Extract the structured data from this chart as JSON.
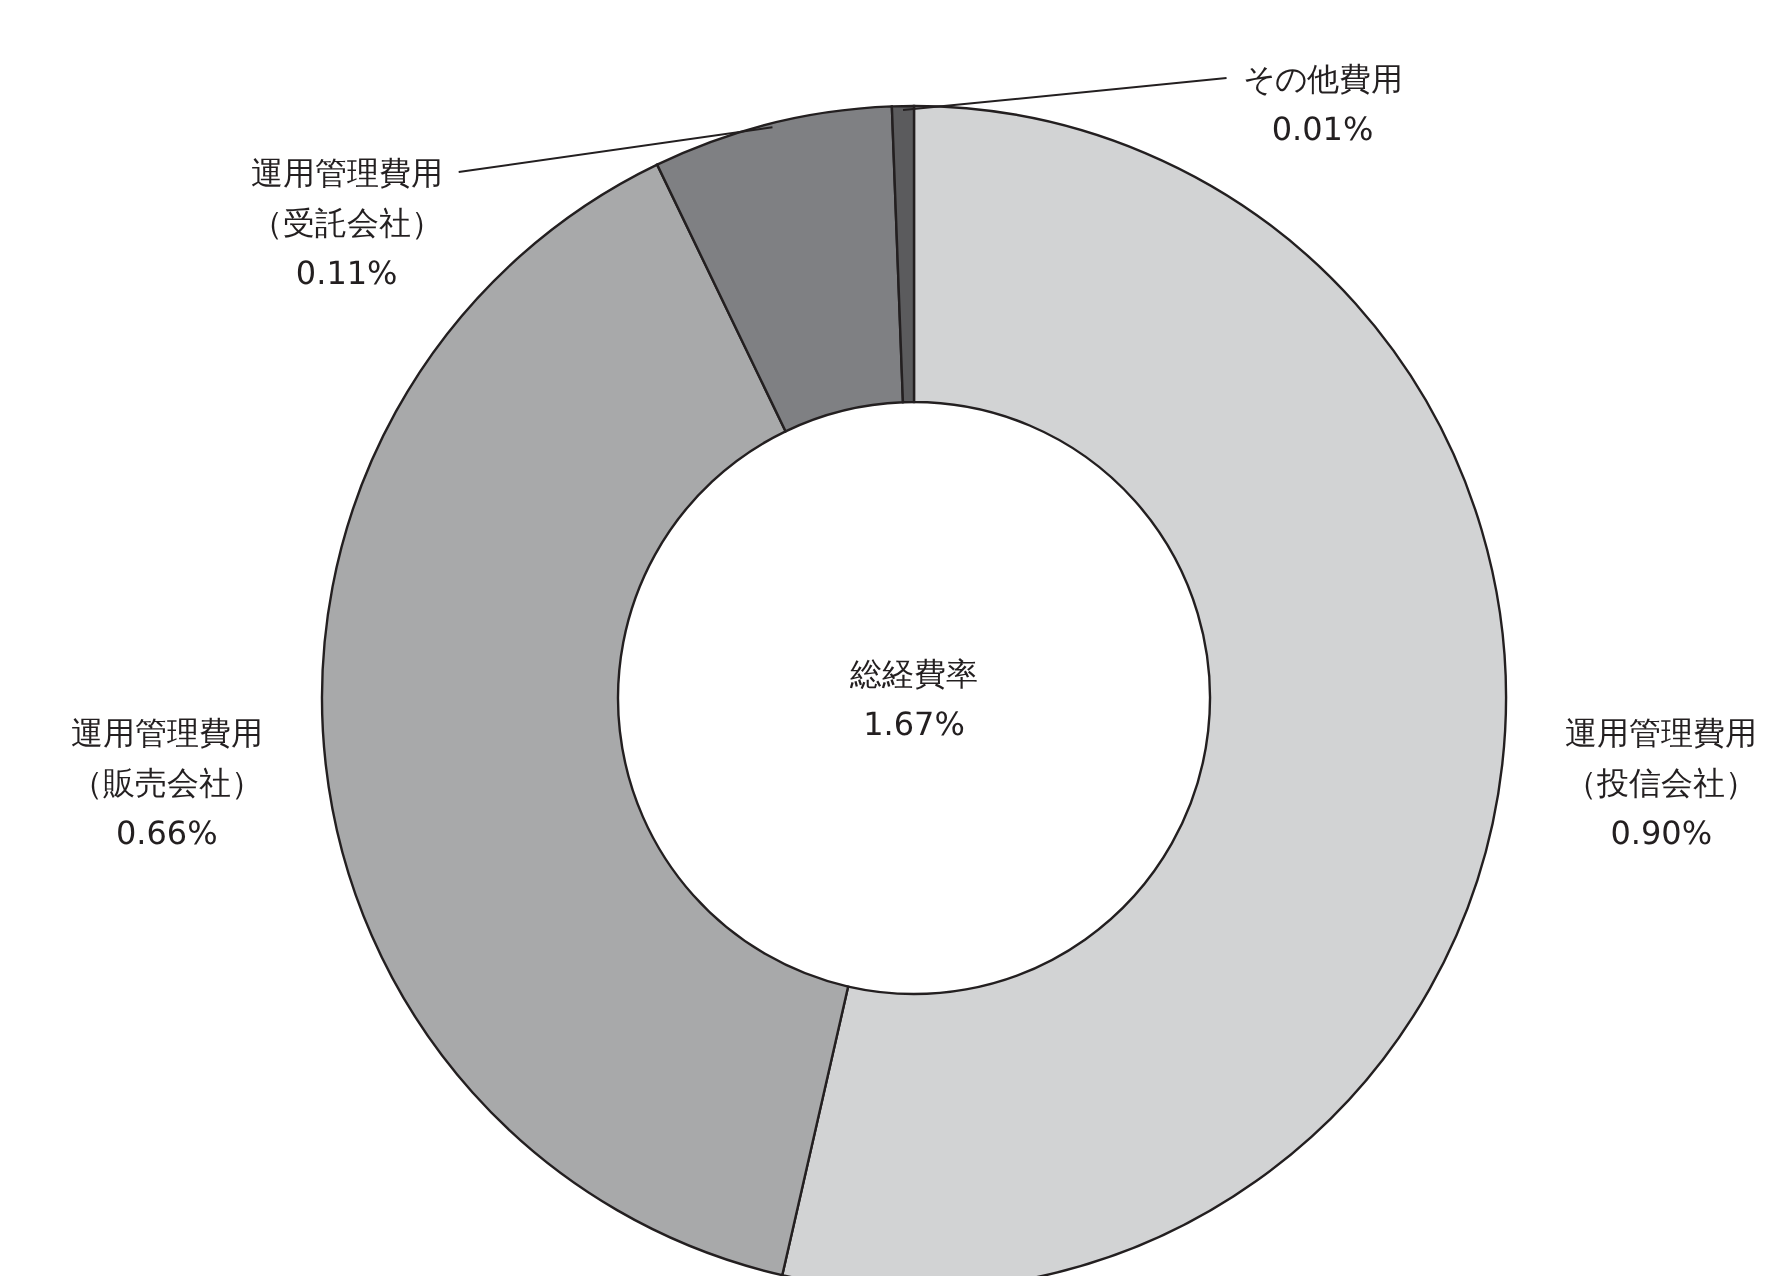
{
  "chart_data": {
    "type": "donut",
    "categories": [
      "運用管理費用（投信会社）",
      "運用管理費用（販売会社）",
      "運用管理費用（受託会社）",
      "その他費用"
    ],
    "values": [
      0.9,
      0.66,
      0.11,
      0.01
    ],
    "value_labels": [
      "0.90%",
      "0.66%",
      "0.11%",
      "0.01%"
    ],
    "colors": [
      "#d2d3d4",
      "#a8a9aa",
      "#7f8083",
      "#5b5b5d"
    ],
    "annotations": [
      "総経費率\n1.67%"
    ]
  }
}
